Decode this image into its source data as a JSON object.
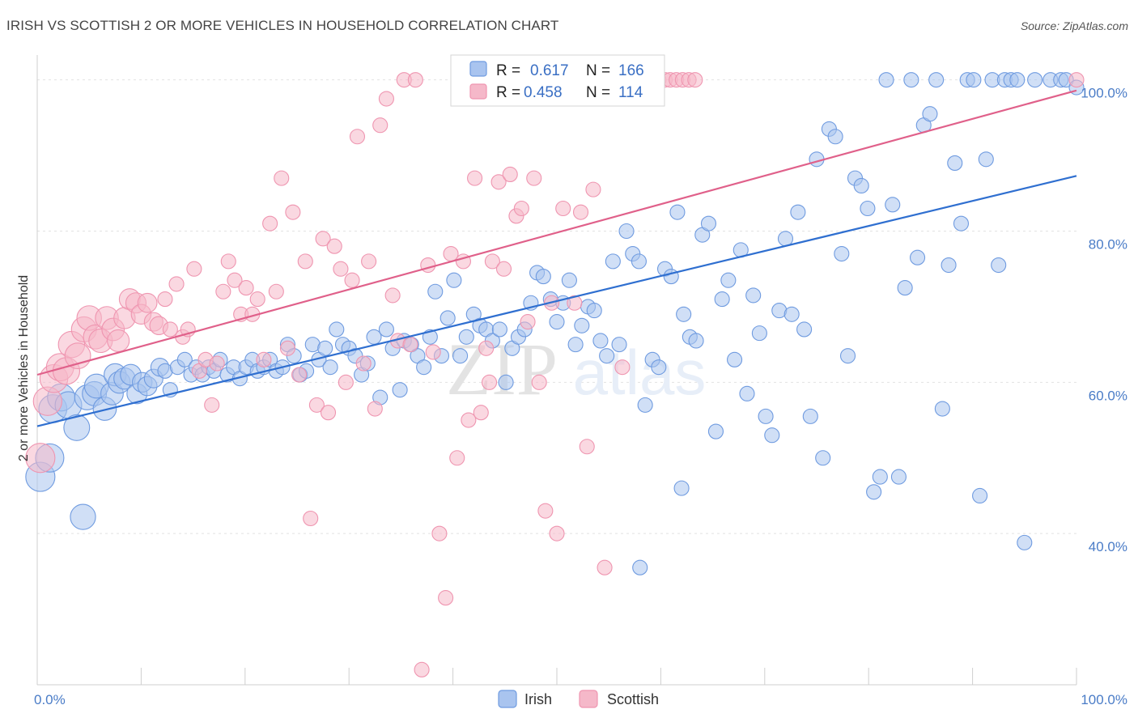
{
  "title": "IRISH VS SCOTTISH 2 OR MORE VEHICLES IN HOUSEHOLD CORRELATION CHART",
  "source": "Source: ZipAtlas.com",
  "watermark": {
    "zip": "ZIP",
    "atlas": "atlas"
  },
  "chart_data": {
    "type": "scatter",
    "xlabel": "",
    "ylabel": "2 or more Vehicles in Household",
    "xlim": [
      0,
      100
    ],
    "ylim": [
      20,
      102
    ],
    "x_tick_labels": {
      "left": "0.0%",
      "right": "100.0%"
    },
    "y_ticks": [
      {
        "value": 40,
        "label": "40.0%"
      },
      {
        "value": 60,
        "label": "60.0%"
      },
      {
        "value": 80,
        "label": "80.0%"
      },
      {
        "value": 100,
        "label": "100.0%"
      }
    ],
    "grid": true,
    "legend": {
      "placement": "top-center",
      "entries": [
        {
          "series": "Irish",
          "r_label": "R =",
          "r_value": "0.617",
          "n_label": "N =",
          "n_value": "166"
        },
        {
          "series": "Scottish",
          "r_label": "R =",
          "r_value": "0.458",
          "n_label": "N =",
          "n_value": "114"
        }
      ]
    },
    "series": [
      {
        "name": "Irish",
        "color": "#6f9be0",
        "fill": "#a9c4ef",
        "line_color": "#2f6fd0",
        "trend": {
          "x": [
            0,
            100
          ],
          "y": [
            54.2,
            87.3
          ]
        },
        "points": [
          [
            0.3,
            47.5
          ],
          [
            1.2,
            50.0
          ],
          [
            1.5,
            56.5
          ],
          [
            2.3,
            58.0
          ],
          [
            3.0,
            57.0
          ],
          [
            3.8,
            54.0
          ],
          [
            4.4,
            42.2
          ],
          [
            4.8,
            58.0
          ],
          [
            5.5,
            58.5
          ],
          [
            5.7,
            59.5
          ],
          [
            6.5,
            56.5
          ],
          [
            7.2,
            58.5
          ],
          [
            7.5,
            61.0
          ],
          [
            7.9,
            60.0
          ],
          [
            8.4,
            60.5
          ],
          [
            9.0,
            61.0
          ],
          [
            9.6,
            58.5
          ],
          [
            10.1,
            60.0
          ],
          [
            10.6,
            59.5
          ],
          [
            11.2,
            60.5
          ],
          [
            11.8,
            62.0
          ],
          [
            12.3,
            61.5
          ],
          [
            12.8,
            59.0
          ],
          [
            13.5,
            62.0
          ],
          [
            14.2,
            63.0
          ],
          [
            14.8,
            61.0
          ],
          [
            15.3,
            62.0
          ],
          [
            15.9,
            61.0
          ],
          [
            16.5,
            62.0
          ],
          [
            17.0,
            61.5
          ],
          [
            17.6,
            63.0
          ],
          [
            18.3,
            61.0
          ],
          [
            18.9,
            62.0
          ],
          [
            19.5,
            60.5
          ],
          [
            20.1,
            62.0
          ],
          [
            20.7,
            63.0
          ],
          [
            21.2,
            61.5
          ],
          [
            21.8,
            62.0
          ],
          [
            22.4,
            63.0
          ],
          [
            23.0,
            61.5
          ],
          [
            23.6,
            62.0
          ],
          [
            24.1,
            65.0
          ],
          [
            24.7,
            63.5
          ],
          [
            25.3,
            61.0
          ],
          [
            25.9,
            61.5
          ],
          [
            26.5,
            65.0
          ],
          [
            27.1,
            63.0
          ],
          [
            27.7,
            64.5
          ],
          [
            28.2,
            62.0
          ],
          [
            28.8,
            67.0
          ],
          [
            29.4,
            65.0
          ],
          [
            30.0,
            64.5
          ],
          [
            30.6,
            63.5
          ],
          [
            31.2,
            61.0
          ],
          [
            31.8,
            62.5
          ],
          [
            32.4,
            66.0
          ],
          [
            33.0,
            58.0
          ],
          [
            33.6,
            67.0
          ],
          [
            34.2,
            64.5
          ],
          [
            34.9,
            59.0
          ],
          [
            35.3,
            65.5
          ],
          [
            36.0,
            65.0
          ],
          [
            36.6,
            63.5
          ],
          [
            37.2,
            62.0
          ],
          [
            37.8,
            66.0
          ],
          [
            38.3,
            72.0
          ],
          [
            38.9,
            63.5
          ],
          [
            39.5,
            68.5
          ],
          [
            40.1,
            73.5
          ],
          [
            40.7,
            63.5
          ],
          [
            41.3,
            66.0
          ],
          [
            42.0,
            69.0
          ],
          [
            42.6,
            67.5
          ],
          [
            43.2,
            67.0
          ],
          [
            43.8,
            65.5
          ],
          [
            44.5,
            67.0
          ],
          [
            45.1,
            60.0
          ],
          [
            45.7,
            64.5
          ],
          [
            46.3,
            66.0
          ],
          [
            46.9,
            67.0
          ],
          [
            47.5,
            70.5
          ],
          [
            48.1,
            74.5
          ],
          [
            48.7,
            74.0
          ],
          [
            49.4,
            71.0
          ],
          [
            50.0,
            68.0
          ],
          [
            50.6,
            70.5
          ],
          [
            51.2,
            73.5
          ],
          [
            51.8,
            65.0
          ],
          [
            52.4,
            67.5
          ],
          [
            53.0,
            70.0
          ],
          [
            53.6,
            69.5
          ],
          [
            54.2,
            65.5
          ],
          [
            54.8,
            63.5
          ],
          [
            55.4,
            76.0
          ],
          [
            56.0,
            65.0
          ],
          [
            56.7,
            80.0
          ],
          [
            57.3,
            77.0
          ],
          [
            57.9,
            76.0
          ],
          [
            58.5,
            57.0
          ],
          [
            59.2,
            63.0
          ],
          [
            59.8,
            62.0
          ],
          [
            60.4,
            75.0
          ],
          [
            61.0,
            74.0
          ],
          [
            61.6,
            82.5
          ],
          [
            62.2,
            69.0
          ],
          [
            62.8,
            66.0
          ],
          [
            63.4,
            65.5
          ],
          [
            64.0,
            79.5
          ],
          [
            64.6,
            81.0
          ],
          [
            65.3,
            53.5
          ],
          [
            65.9,
            71.0
          ],
          [
            66.5,
            73.5
          ],
          [
            67.1,
            63.0
          ],
          [
            67.7,
            77.5
          ],
          [
            68.3,
            58.5
          ],
          [
            68.9,
            71.5
          ],
          [
            69.5,
            66.5
          ],
          [
            70.1,
            55.5
          ],
          [
            70.7,
            53.0
          ],
          [
            71.4,
            69.5
          ],
          [
            72.0,
            79.0
          ],
          [
            72.6,
            69.0
          ],
          [
            73.2,
            82.5
          ],
          [
            73.8,
            67.0
          ],
          [
            74.4,
            55.5
          ],
          [
            75.0,
            89.5
          ],
          [
            75.6,
            50.0
          ],
          [
            76.2,
            93.5
          ],
          [
            76.8,
            92.5
          ],
          [
            77.4,
            77.0
          ],
          [
            78.0,
            63.5
          ],
          [
            78.7,
            87.0
          ],
          [
            79.3,
            86.0
          ],
          [
            79.9,
            83.0
          ],
          [
            80.5,
            45.5
          ],
          [
            81.1,
            47.5
          ],
          [
            81.7,
            100.0
          ],
          [
            82.3,
            83.5
          ],
          [
            82.9,
            47.5
          ],
          [
            83.5,
            72.5
          ],
          [
            84.1,
            100.0
          ],
          [
            84.7,
            76.5
          ],
          [
            85.3,
            94.0
          ],
          [
            85.9,
            95.5
          ],
          [
            86.5,
            100.0
          ],
          [
            87.1,
            56.5
          ],
          [
            87.7,
            75.5
          ],
          [
            88.3,
            89.0
          ],
          [
            88.9,
            81.0
          ],
          [
            89.5,
            100.0
          ],
          [
            90.1,
            100.0
          ],
          [
            90.7,
            45.0
          ],
          [
            91.3,
            89.5
          ],
          [
            91.9,
            100.0
          ],
          [
            92.5,
            75.5
          ],
          [
            93.1,
            100.0
          ],
          [
            93.7,
            100.0
          ],
          [
            94.3,
            100.0
          ],
          [
            95.0,
            38.8
          ],
          [
            96.0,
            100.0
          ],
          [
            97.5,
            100.0
          ],
          [
            98.5,
            100.0
          ],
          [
            99.0,
            100.0
          ],
          [
            100.0,
            99.0
          ],
          [
            62.0,
            46.0
          ],
          [
            58.0,
            35.5
          ]
        ]
      },
      {
        "name": "Scottish",
        "color": "#ef95b0",
        "fill": "#f5b8c9",
        "line_color": "#e0608a",
        "trend": {
          "x": [
            0,
            100
          ],
          "y": [
            61.0,
            98.6
          ]
        },
        "points": [
          [
            0.3,
            50.0
          ],
          [
            1.0,
            57.5
          ],
          [
            1.6,
            60.5
          ],
          [
            2.2,
            62.0
          ],
          [
            2.8,
            61.5
          ],
          [
            3.3,
            65.0
          ],
          [
            3.9,
            63.5
          ],
          [
            4.5,
            67.0
          ],
          [
            5.0,
            68.5
          ],
          [
            5.6,
            66.0
          ],
          [
            6.1,
            65.5
          ],
          [
            6.7,
            68.5
          ],
          [
            7.3,
            67.0
          ],
          [
            7.8,
            65.5
          ],
          [
            8.4,
            68.5
          ],
          [
            8.9,
            71.0
          ],
          [
            9.5,
            70.5
          ],
          [
            10.0,
            69.0
          ],
          [
            10.6,
            70.5
          ],
          [
            11.2,
            68.0
          ],
          [
            11.7,
            67.5
          ],
          [
            12.3,
            71.0
          ],
          [
            12.8,
            67.0
          ],
          [
            13.4,
            73.0
          ],
          [
            14.0,
            66.0
          ],
          [
            14.5,
            67.0
          ],
          [
            15.1,
            75.0
          ],
          [
            15.6,
            61.5
          ],
          [
            16.2,
            63.0
          ],
          [
            16.8,
            57.0
          ],
          [
            17.3,
            62.5
          ],
          [
            17.9,
            72.0
          ],
          [
            18.4,
            76.0
          ],
          [
            19.0,
            73.5
          ],
          [
            19.6,
            69.0
          ],
          [
            20.1,
            72.5
          ],
          [
            20.7,
            69.0
          ],
          [
            21.2,
            71.0
          ],
          [
            21.8,
            63.0
          ],
          [
            22.4,
            81.0
          ],
          [
            23.0,
            72.0
          ],
          [
            23.5,
            87.0
          ],
          [
            24.1,
            64.5
          ],
          [
            24.6,
            82.5
          ],
          [
            25.2,
            61.0
          ],
          [
            25.8,
            76.0
          ],
          [
            26.3,
            42.0
          ],
          [
            26.9,
            57.0
          ],
          [
            27.5,
            79.0
          ],
          [
            28.0,
            56.0
          ],
          [
            28.6,
            78.0
          ],
          [
            29.2,
            75.0
          ],
          [
            29.7,
            60.0
          ],
          [
            30.3,
            73.5
          ],
          [
            30.8,
            92.5
          ],
          [
            31.4,
            62.5
          ],
          [
            31.9,
            76.0
          ],
          [
            32.5,
            56.5
          ],
          [
            33.0,
            94.0
          ],
          [
            33.6,
            97.5
          ],
          [
            34.2,
            71.5
          ],
          [
            34.7,
            65.5
          ],
          [
            35.3,
            100.0
          ],
          [
            35.9,
            65.0
          ],
          [
            36.4,
            100.0
          ],
          [
            37.0,
            22.0
          ],
          [
            37.6,
            75.5
          ],
          [
            38.1,
            64.0
          ],
          [
            38.7,
            40.0
          ],
          [
            39.3,
            31.5
          ],
          [
            39.8,
            77.0
          ],
          [
            40.4,
            50.0
          ],
          [
            41.0,
            76.0
          ],
          [
            41.5,
            55.0
          ],
          [
            42.1,
            87.0
          ],
          [
            42.7,
            56.0
          ],
          [
            43.2,
            64.5
          ],
          [
            43.8,
            76.0
          ],
          [
            44.4,
            86.5
          ],
          [
            44.9,
            75.0
          ],
          [
            45.5,
            87.5
          ],
          [
            46.1,
            82.0
          ],
          [
            46.6,
            83.0
          ],
          [
            47.2,
            68.0
          ],
          [
            47.8,
            87.0
          ],
          [
            48.3,
            60.0
          ],
          [
            48.9,
            43.0
          ],
          [
            49.5,
            70.5
          ],
          [
            50.0,
            40.0
          ],
          [
            50.6,
            83.0
          ],
          [
            51.2,
            100.0
          ],
          [
            51.7,
            70.5
          ],
          [
            52.3,
            82.5
          ],
          [
            52.9,
            51.5
          ],
          [
            53.5,
            85.5
          ],
          [
            54.0,
            100.0
          ],
          [
            54.6,
            35.5
          ],
          [
            55.2,
            100.0
          ],
          [
            55.8,
            100.0
          ],
          [
            56.3,
            62.0
          ],
          [
            56.9,
            100.0
          ],
          [
            57.5,
            100.0
          ],
          [
            58.1,
            100.0
          ],
          [
            58.6,
            100.0
          ],
          [
            59.2,
            100.0
          ],
          [
            59.8,
            100.0
          ],
          [
            60.4,
            100.0
          ],
          [
            60.9,
            100.0
          ],
          [
            61.5,
            100.0
          ],
          [
            62.1,
            100.0
          ],
          [
            62.7,
            100.0
          ],
          [
            63.3,
            100.0
          ],
          [
            100.0,
            100.0
          ],
          [
            43.5,
            60.0
          ]
        ]
      }
    ]
  }
}
